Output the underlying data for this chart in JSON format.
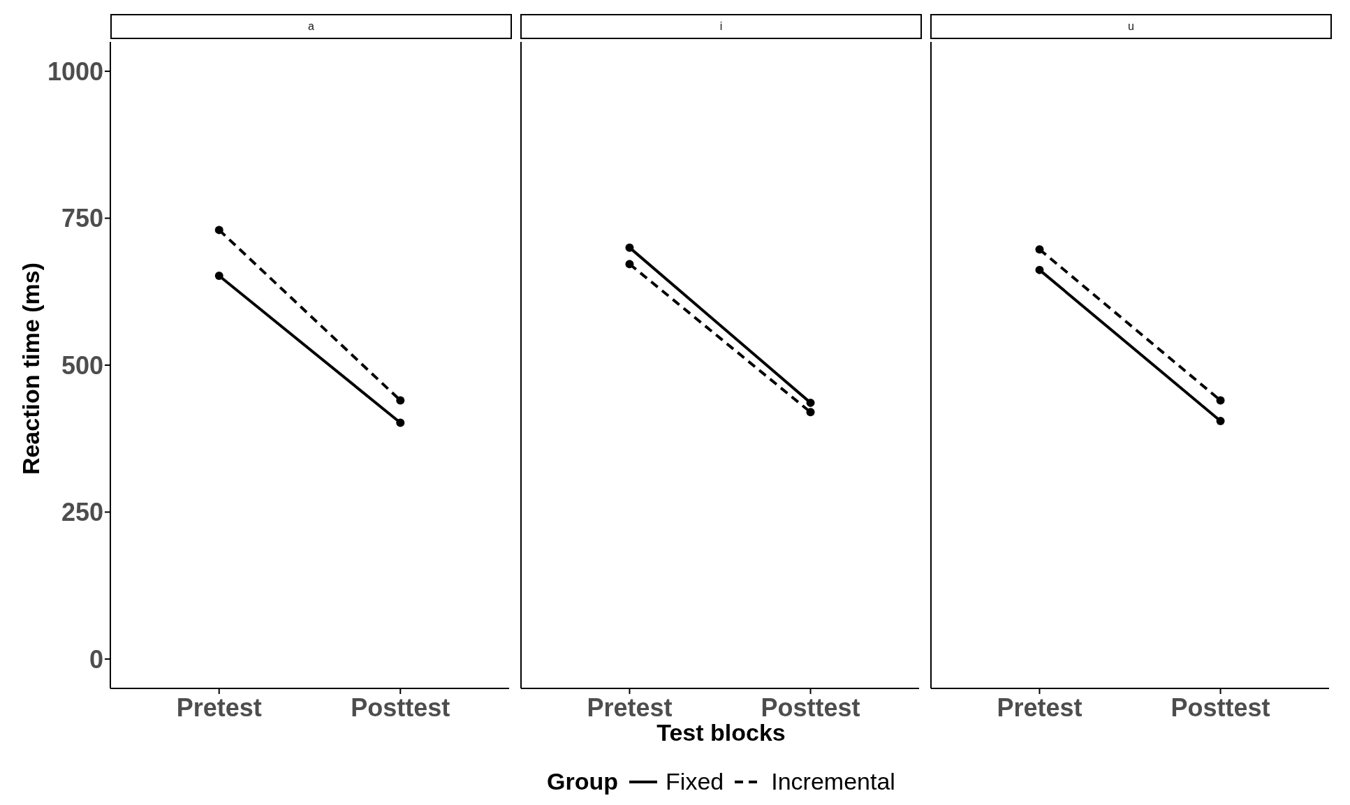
{
  "chart_data": [
    {
      "type": "line",
      "title": "a",
      "ylabel": "Reaction time (ms)",
      "categories": [
        "Pretest",
        "Posttest"
      ],
      "ylim": [
        -50,
        1050
      ],
      "yticks": [
        0,
        250,
        500,
        750,
        1000
      ],
      "grid": false,
      "marker": "circle",
      "series": [
        {
          "color": "#000000",
          "line_style": "solid",
          "values": [
            652,
            402
          ]
        },
        {
          "color": "#000000",
          "line_style": "dashed",
          "values": [
            730,
            440
          ]
        }
      ]
    },
    {
      "type": "line",
      "title": "i",
      "xlabel": "Test blocks",
      "legend_title": "Group",
      "legend": "bottom",
      "categories": [
        "Pretest",
        "Posttest"
      ],
      "ylim": [
        -50,
        1050
      ],
      "yticks": [
        0,
        250,
        500,
        750,
        1000
      ],
      "tick_labels": "x",
      "grid": false,
      "marker": "circle",
      "series": [
        {
          "name": "Fixed",
          "color": "#000000",
          "line_style": "solid",
          "values": [
            700,
            436
          ]
        },
        {
          "name": "Incremental",
          "color": "#000000",
          "line_style": "dashed",
          "values": [
            672,
            420
          ]
        }
      ]
    },
    {
      "type": "line",
      "title": "u",
      "categories": [
        "Pretest",
        "Posttest"
      ],
      "ylim": [
        -50,
        1050
      ],
      "yticks": [
        0,
        250,
        500,
        750,
        1000
      ],
      "tick_labels": "x",
      "grid": false,
      "marker": "circle",
      "series": [
        {
          "color": "#000000",
          "line_style": "solid",
          "values": [
            662,
            405
          ]
        },
        {
          "color": "#000000",
          "line_style": "dashed",
          "values": [
            697,
            440
          ]
        }
      ]
    }
  ]
}
